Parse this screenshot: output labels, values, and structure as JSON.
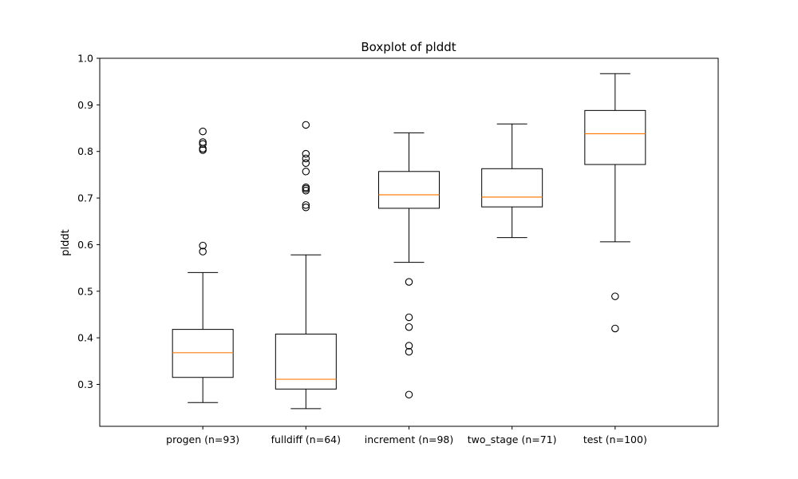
{
  "chart_data": {
    "type": "boxplot",
    "title": "Boxplot of plddt",
    "xlabel": "",
    "ylabel": "plddt",
    "ylim": [
      0.21,
      1.0
    ],
    "yticks": [
      0.3,
      0.4,
      0.5,
      0.6,
      0.7,
      0.8,
      0.9,
      1.0
    ],
    "ytick_labels": [
      "0.3",
      "0.4",
      "0.5",
      "0.6",
      "0.7",
      "0.8",
      "0.9",
      "1.0"
    ],
    "grid": false,
    "colors": {
      "box": "#000000",
      "median": "#ff7f0e",
      "background": "#ffffff"
    },
    "categories": [
      "progen (n=93)",
      "fulldiff (n=64)",
      "increment (n=98)",
      "two_stage (n=71)",
      "test (n=100)"
    ],
    "boxes": [
      {
        "whisker_low": 0.261,
        "q1": 0.315,
        "median": 0.368,
        "q3": 0.418,
        "whisker_high": 0.54,
        "outliers": [
          0.585,
          0.598,
          0.803,
          0.806,
          0.816,
          0.82,
          0.843
        ]
      },
      {
        "whisker_low": 0.248,
        "q1": 0.29,
        "median": 0.311,
        "q3": 0.408,
        "whisker_high": 0.578,
        "outliers": [
          0.68,
          0.685,
          0.716,
          0.72,
          0.723,
          0.757,
          0.775,
          0.785,
          0.795,
          0.857
        ]
      },
      {
        "whisker_low": 0.562,
        "q1": 0.678,
        "median": 0.707,
        "q3": 0.757,
        "whisker_high": 0.84,
        "outliers": [
          0.278,
          0.37,
          0.383,
          0.423,
          0.444,
          0.52
        ]
      },
      {
        "whisker_low": 0.615,
        "q1": 0.681,
        "median": 0.702,
        "q3": 0.763,
        "whisker_high": 0.859,
        "outliers": []
      },
      {
        "whisker_low": 0.606,
        "q1": 0.772,
        "median": 0.838,
        "q3": 0.888,
        "whisker_high": 0.967,
        "outliers": [
          0.42,
          0.489
        ]
      }
    ]
  }
}
